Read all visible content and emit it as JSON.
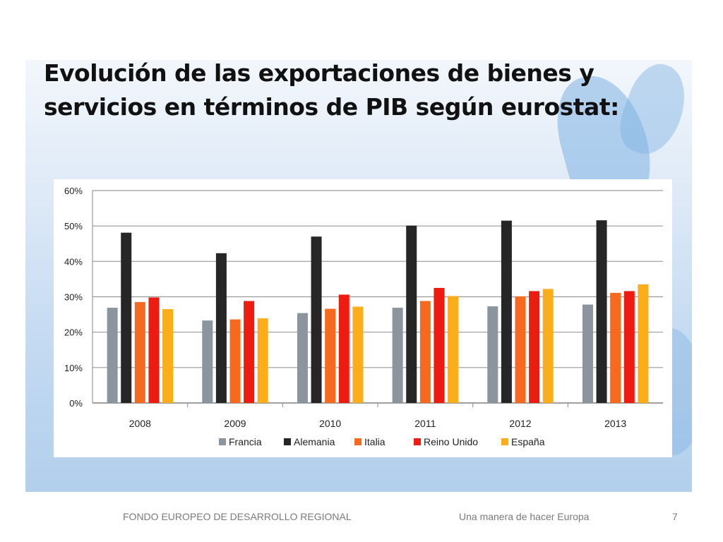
{
  "slide": {
    "title": "Evolución de las exportaciones de bienes y servicios en términos de PIB según eurostat:",
    "footer_left": "FONDO EUROPEO DE DESARROLLO REGIONAL",
    "footer_mid": "Una manera de hacer Europa",
    "page_number": "7"
  },
  "chart_data": {
    "type": "bar",
    "categories": [
      "2008",
      "2009",
      "2010",
      "2011",
      "2012",
      "2013"
    ],
    "series": [
      {
        "name": "Francia",
        "color": "#8c959e",
        "values": [
          26.9,
          23.3,
          25.4,
          26.9,
          27.3,
          27.8
        ]
      },
      {
        "name": "Alemania",
        "color": "#262626",
        "values": [
          48.1,
          42.3,
          47.0,
          50.1,
          51.5,
          51.6
        ]
      },
      {
        "name": "Italia",
        "color": "#f56a1e",
        "values": [
          28.5,
          23.6,
          26.6,
          28.8,
          30.1,
          31.1
        ]
      },
      {
        "name": "Reino Unido",
        "color": "#ee1c10",
        "values": [
          29.8,
          28.8,
          30.6,
          32.5,
          31.6,
          31.6
        ]
      },
      {
        "name": "España",
        "color": "#fcae1a",
        "values": [
          26.5,
          23.9,
          27.2,
          30.2,
          32.2,
          33.5
        ]
      }
    ],
    "y_ticks": [
      "0%",
      "10%",
      "20%",
      "30%",
      "40%",
      "50%",
      "60%"
    ],
    "ylim": [
      0,
      60
    ],
    "grid": true,
    "legend_position": "bottom"
  }
}
